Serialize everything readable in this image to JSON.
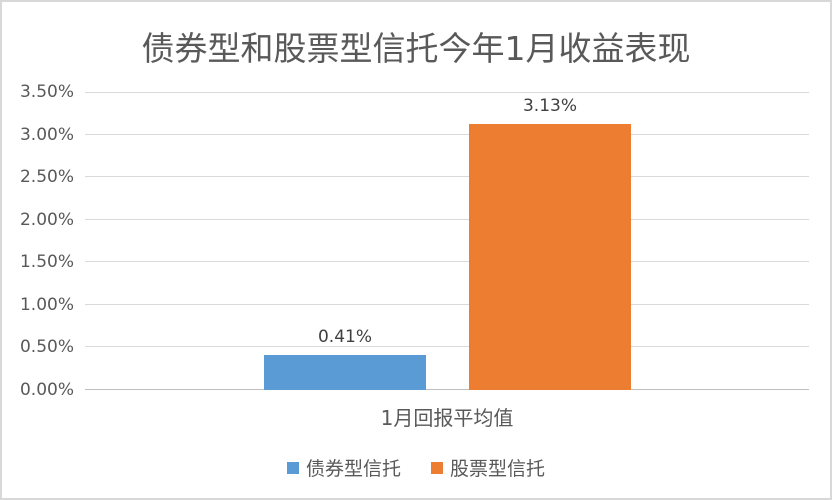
{
  "chart_data": {
    "type": "bar",
    "title": "债券型和股票型信托今年1月收益表现",
    "categories": [
      "1月回报平均值"
    ],
    "series": [
      {
        "name": "债券型信托",
        "values": [
          0.41
        ],
        "data_labels": [
          "0.41%"
        ],
        "color": "#5B9BD5"
      },
      {
        "name": "股票型信托",
        "values": [
          3.13
        ],
        "data_labels": [
          "3.13%"
        ],
        "color": "#ED7D31"
      }
    ],
    "xlabel": "",
    "ylabel": "",
    "ylim": [
      0,
      3.5
    ],
    "ytick_interval": 0.5,
    "yticks": [
      "0.00%",
      "0.50%",
      "1.00%",
      "1.50%",
      "2.00%",
      "2.50%",
      "3.00%",
      "3.50%"
    ],
    "grid": true,
    "legend_position": "bottom"
  },
  "colors": {
    "series_bond_blue": "#5B9BD5",
    "series_stock_orange": "#ED7D31",
    "title_text": "#595959",
    "axis_text": "#595959",
    "data_label_text": "#404040",
    "gridline": "#D9D9D9",
    "axis_zero_line": "#BFBFBF",
    "frame_border": "#D8D8D8",
    "background": "#FFFFFF"
  }
}
